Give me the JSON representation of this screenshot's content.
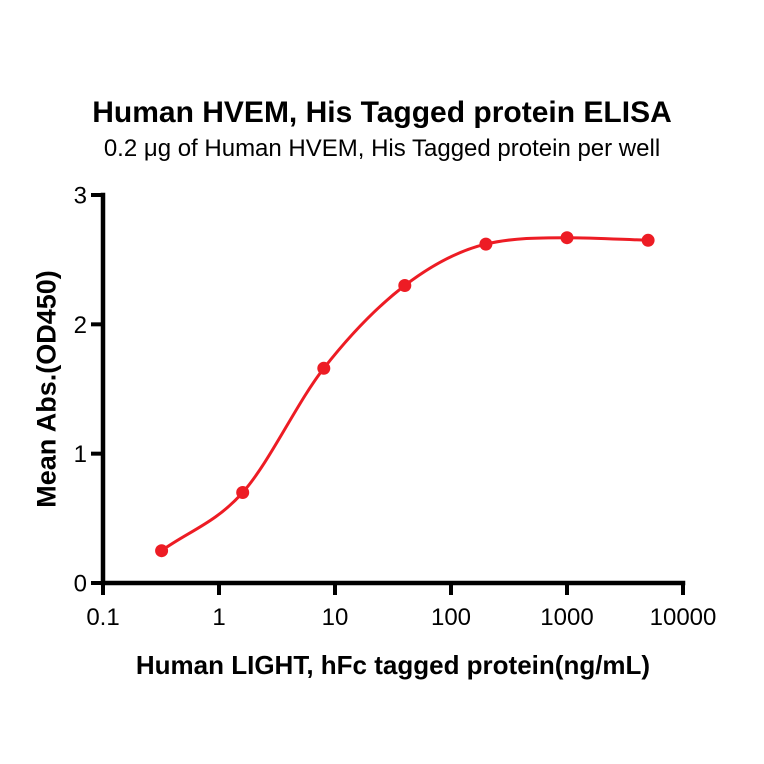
{
  "chart_data": {
    "type": "line",
    "title": "Human HVEM, His Tagged protein ELISA",
    "subtitle": "0.2 μg of Human HVEM, His Tagged protein per well",
    "xlabel": "Human LIGHT, hFc tagged protein(ng/mL)",
    "ylabel": "Mean Abs.(OD450)",
    "x_scale": "log10",
    "xlim": [
      0.1,
      10000
    ],
    "ylim": [
      0,
      3
    ],
    "x_ticks": [
      0.1,
      1,
      10,
      100,
      1000,
      10000
    ],
    "x_tick_labels": [
      "0.1",
      "1",
      "10",
      "100",
      "1000",
      "10000"
    ],
    "y_ticks": [
      0,
      1,
      2,
      3
    ],
    "y_tick_labels": [
      "0",
      "1",
      "2",
      "3"
    ],
    "grid": false,
    "legend": "none",
    "series": [
      {
        "name": "Human HVEM, His Tagged protein ELISA",
        "marker": "circle",
        "curve": "4PL-sigmoid",
        "color": "#ED1C24",
        "x": [
          0.32,
          1.6,
          8,
          40,
          200,
          1000,
          5000
        ],
        "y": [
          0.25,
          0.7,
          1.66,
          2.3,
          2.62,
          2.67,
          2.65
        ]
      }
    ],
    "colors": {
      "curve": "#ED1C24",
      "axis": "#000000",
      "background": "#FFFFFF"
    }
  }
}
